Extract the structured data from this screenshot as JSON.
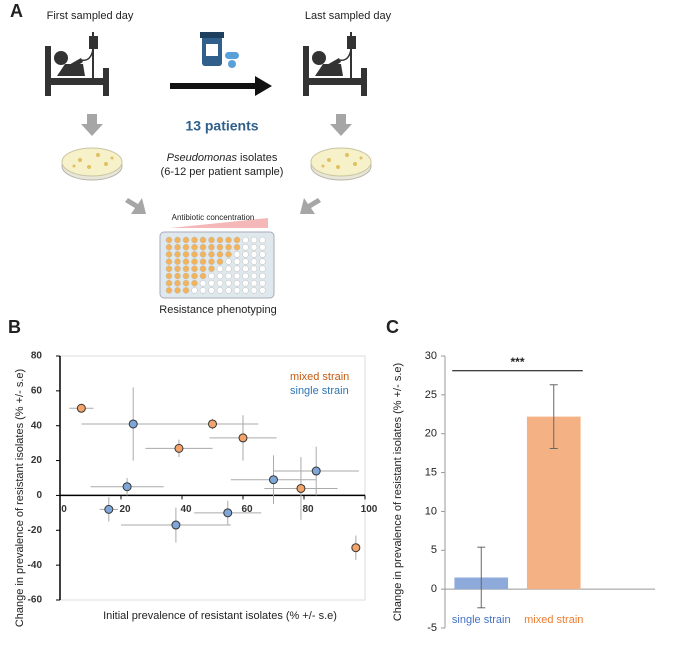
{
  "diagram": {
    "panel": "A",
    "left_label": "First sampled day",
    "right_label": "Last sampled day",
    "patients": "13 patients",
    "isolates_italic": "Pseudomonas",
    "isolates_rest": " isolates",
    "isolates_line2": "(6-12 per patient sample)",
    "gradient_label": "Antibiotic concentration",
    "phenotyping": "Resistance phenotyping"
  },
  "chart_data": [
    {
      "type": "scatter",
      "panel": "B",
      "xlabel": "Initial prevalence of resistant isolates (% +/- s.e)",
      "ylabel": "Change in prevalence of resistant isolates (% +/- s.e)",
      "xlim": [
        0,
        100
      ],
      "xticks": [
        0,
        20,
        40,
        60,
        80,
        100
      ],
      "ylim": [
        -60,
        80
      ],
      "yticks": [
        -60,
        -40,
        -20,
        0,
        20,
        40,
        60,
        80
      ],
      "series": [
        {
          "name": "mixed strain",
          "color": "#f4a46a",
          "text_color": "#c55a11",
          "x": [
            7,
            39,
            50,
            60,
            79,
            97
          ],
          "values": [
            50,
            27,
            41,
            33,
            4,
            -30
          ],
          "xerr": [
            4,
            11,
            15,
            11,
            12,
            1
          ],
          "yerr": [
            2,
            5,
            3,
            13,
            18,
            7
          ]
        },
        {
          "name": "single strain",
          "color": "#7fa6d9",
          "text_color": "#2e75b6",
          "x": [
            24,
            22,
            16,
            38,
            55,
            70,
            84
          ],
          "values": [
            41,
            5,
            -8,
            -17,
            -10,
            9,
            14
          ],
          "xerr": [
            17,
            12,
            3,
            18,
            11,
            14,
            14
          ],
          "yerr": [
            21,
            5,
            7,
            10,
            7,
            14,
            14
          ]
        }
      ]
    },
    {
      "type": "bar",
      "panel": "C",
      "ylabel": "Change in prevalence of resistant isolates (% +/- s.e)",
      "categories": [
        "single strain",
        "mixed strain"
      ],
      "values": [
        1.5,
        22.2
      ],
      "errors": [
        3.9,
        4.1
      ],
      "colors": [
        "#8eaadb",
        "#f4b183"
      ],
      "label_colors": [
        "#4472c4",
        "#ed7d31"
      ],
      "annotation": "***",
      "ylim": [
        -5,
        30
      ],
      "yticks": [
        -5,
        0,
        5,
        10,
        15,
        20,
        25,
        30
      ]
    }
  ]
}
